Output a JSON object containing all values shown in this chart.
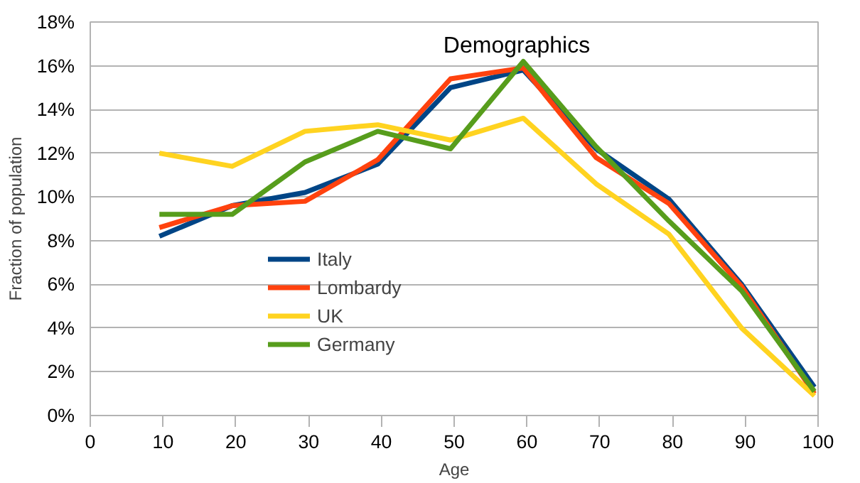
{
  "chart_data": {
    "type": "line",
    "title": "Demographics",
    "xlabel": "Age",
    "ylabel": "Fraction of population",
    "x": [
      9.5,
      19.5,
      29.5,
      39.5,
      49.5,
      59.5,
      69.5,
      79.5,
      89.5,
      99.5
    ],
    "series": [
      {
        "name": "Italy",
        "color": "#004586",
        "values": [
          8.2,
          9.6,
          10.2,
          11.5,
          15.0,
          15.8,
          12.2,
          9.9,
          6.0,
          1.3
        ]
      },
      {
        "name": "Lombardy",
        "color": "#ff420e",
        "values": [
          8.6,
          9.6,
          9.8,
          11.7,
          15.4,
          15.9,
          11.8,
          9.7,
          5.9,
          1.0
        ]
      },
      {
        "name": "UK",
        "color": "#ffd320",
        "values": [
          12.0,
          11.4,
          13.0,
          13.3,
          12.6,
          13.6,
          10.6,
          8.3,
          4.0,
          0.9
        ]
      },
      {
        "name": "Germany",
        "color": "#579d1c",
        "values": [
          9.2,
          9.2,
          11.6,
          13.0,
          12.2,
          16.2,
          12.3,
          8.9,
          5.7,
          1.1
        ]
      }
    ],
    "xlim": [
      0,
      100
    ],
    "xticks": [
      0,
      10,
      20,
      30,
      40,
      50,
      60,
      70,
      80,
      90,
      100
    ],
    "ylim": [
      0,
      18
    ],
    "yticks": [
      {
        "value": 0,
        "label": "0%"
      },
      {
        "value": 2,
        "label": "2%"
      },
      {
        "value": 4,
        "label": "4%"
      },
      {
        "value": 6,
        "label": "6%"
      },
      {
        "value": 8,
        "label": "8%"
      },
      {
        "value": 10,
        "label": "10%"
      },
      {
        "value": 12,
        "label": "12%"
      },
      {
        "value": 14,
        "label": "14%"
      },
      {
        "value": 16,
        "label": "16%"
      },
      {
        "value": 18,
        "label": "18%"
      }
    ],
    "grid": "y",
    "legend": "left",
    "marker": "none",
    "line_style": "solid"
  }
}
